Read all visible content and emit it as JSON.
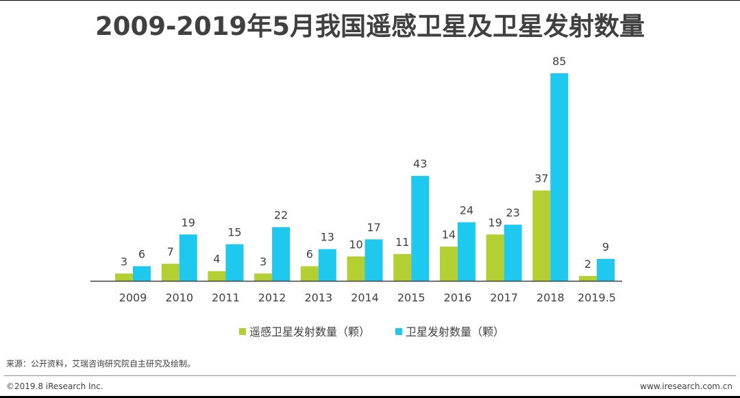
{
  "footer": {
    "source": "来源：公开资料，艾瑞咨询研究院自主研究及绘制。",
    "copyright": "©2019.8 iResearch Inc.",
    "website": "www.iresearch.com.cn"
  },
  "colors": {
    "series_1": "#b3cf32",
    "series_2": "#1fc8ef",
    "axis": "#404040",
    "text": "#404040"
  },
  "chart_data": {
    "type": "bar",
    "title": "2009-2019年5月我国遥感卫星及卫星发射数量",
    "categories": [
      "2009",
      "2010",
      "2011",
      "2012",
      "2013",
      "2014",
      "2015",
      "2016",
      "2017",
      "2018",
      "2019.5"
    ],
    "series": [
      {
        "name": "遥感卫星发射数量（颗）",
        "values": [
          3,
          7,
          4,
          3,
          6,
          10,
          11,
          14,
          19,
          37,
          2
        ]
      },
      {
        "name": "卫星发射数量（颗）",
        "values": [
          6,
          19,
          15,
          22,
          13,
          17,
          43,
          24,
          23,
          85,
          9
        ]
      }
    ],
    "xlabel": "",
    "ylabel": "",
    "ylim": [
      0,
      85
    ],
    "grid": false,
    "legend": "bottom-center"
  }
}
